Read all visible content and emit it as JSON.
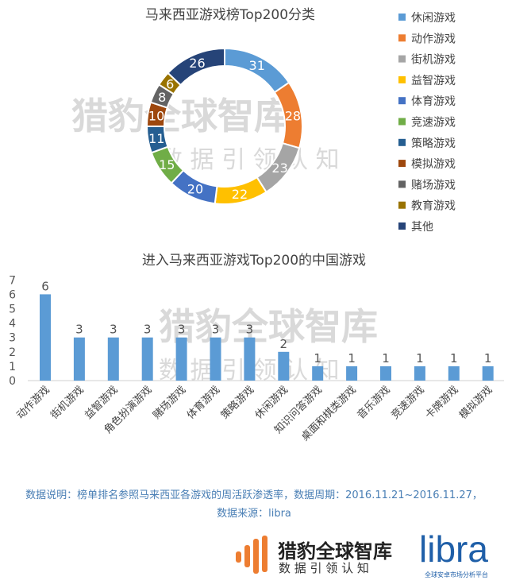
{
  "chart_data": [
    {
      "type": "pie",
      "title": "马来西亚游戏榜Top200分类",
      "legend": "right",
      "categories": [
        "休闲游戏",
        "动作游戏",
        "街机游戏",
        "益智游戏",
        "体育游戏",
        "竞速游戏",
        "策略游戏",
        "模拟游戏",
        "赌场游戏",
        "教育游戏",
        "其他"
      ],
      "values": [
        31,
        28,
        23,
        22,
        20,
        15,
        11,
        10,
        8,
        6,
        26
      ],
      "colors": [
        "#5b9bd5",
        "#ed7d31",
        "#a5a5a5",
        "#ffc000",
        "#4472c4",
        "#70ad47",
        "#255e91",
        "#9e480e",
        "#636363",
        "#997300",
        "#264478"
      ]
    },
    {
      "type": "bar",
      "title": "进入马来西亚游戏Top200的中国游戏",
      "categories": [
        "动作游戏",
        "街机游戏",
        "益智游戏",
        "角色扮演游戏",
        "赌场游戏",
        "体育游戏",
        "策略游戏",
        "休闲游戏",
        "知识问答游戏",
        "桌面和棋类游戏",
        "音乐游戏",
        "竞速游戏",
        "卡牌游戏",
        "模拟游戏"
      ],
      "values": [
        6,
        3,
        3,
        3,
        3,
        3,
        3,
        2,
        1,
        1,
        1,
        1,
        1,
        1
      ],
      "ylim": [
        0,
        7
      ],
      "yticks": [
        "0",
        "1",
        "2",
        "3",
        "4",
        "5",
        "6",
        "7"
      ],
      "color": "#5b9bd5"
    }
  ],
  "note_line1": "数据说明：榜单排名参照马来西亚各游戏的周活跃渗透率，数据周期：2016.11.21~2016.11.27，",
  "note_line2": "数据来源：libra",
  "watermark": {
    "title": "猎豹全球智库",
    "subtitle": "数 据 引 领 认 知"
  },
  "logo": {
    "title": "猎豹全球智库",
    "subtitle": "数 据 引 领 认 知",
    "libra": "libra",
    "libra_sub": "全球安卓市场分析平台"
  }
}
